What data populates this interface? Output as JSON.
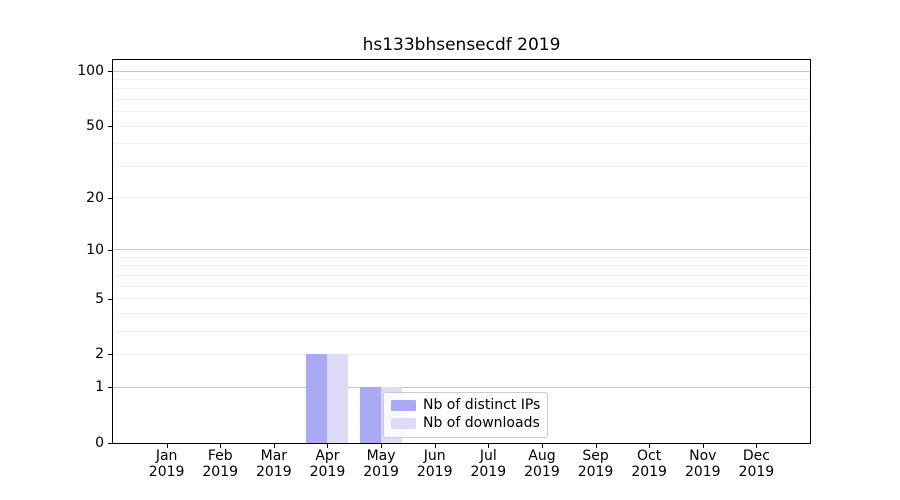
{
  "title": "hs133bhsensecdf 2019",
  "chart_data": {
    "type": "bar",
    "title": "hs133bhsensecdf 2019",
    "x_tick_months": [
      "Jan",
      "Feb",
      "Mar",
      "Apr",
      "May",
      "Jun",
      "Jul",
      "Aug",
      "Sep",
      "Oct",
      "Nov",
      "Dec"
    ],
    "x_tick_year": "2019",
    "categories": [
      "Jan 2019",
      "Feb 2019",
      "Mar 2019",
      "Apr 2019",
      "May 2019",
      "Jun 2019",
      "Jul 2019",
      "Aug 2019",
      "Sep 2019",
      "Oct 2019",
      "Nov 2019",
      "Dec 2019"
    ],
    "series": [
      {
        "name": "Nb of distinct IPs",
        "color": "#a9a9f4",
        "values": [
          0,
          0,
          0,
          2,
          1,
          0,
          0,
          0,
          0,
          0,
          0,
          0
        ]
      },
      {
        "name": "Nb of downloads",
        "color": "#dcdcf8",
        "values": [
          0,
          0,
          0,
          2,
          1,
          0,
          0,
          0,
          0,
          0,
          0,
          0
        ]
      }
    ],
    "y_axis": {
      "scale": "log1p",
      "tick_labels": [
        0,
        1,
        2,
        5,
        10,
        20,
        50,
        100
      ],
      "decade_gridlines": [
        1,
        10,
        100
      ],
      "minor_gridlines": [
        2,
        3,
        4,
        5,
        6,
        7,
        8,
        9,
        20,
        30,
        40,
        50,
        60,
        70,
        80,
        90
      ],
      "ymin": 0,
      "ymax": 115
    },
    "legend": {
      "position": "lower center"
    },
    "grid": true
  },
  "style": {
    "background": "#ffffff",
    "axis_color": "#000000",
    "grid_decade_color": "#c6c6c6",
    "grid_minor_color": "#f0f0f0",
    "legend_border_color": "#cccccc",
    "bar_ips_color": "#a9a9f4",
    "bar_downloads_color": "#dcdcf8"
  }
}
